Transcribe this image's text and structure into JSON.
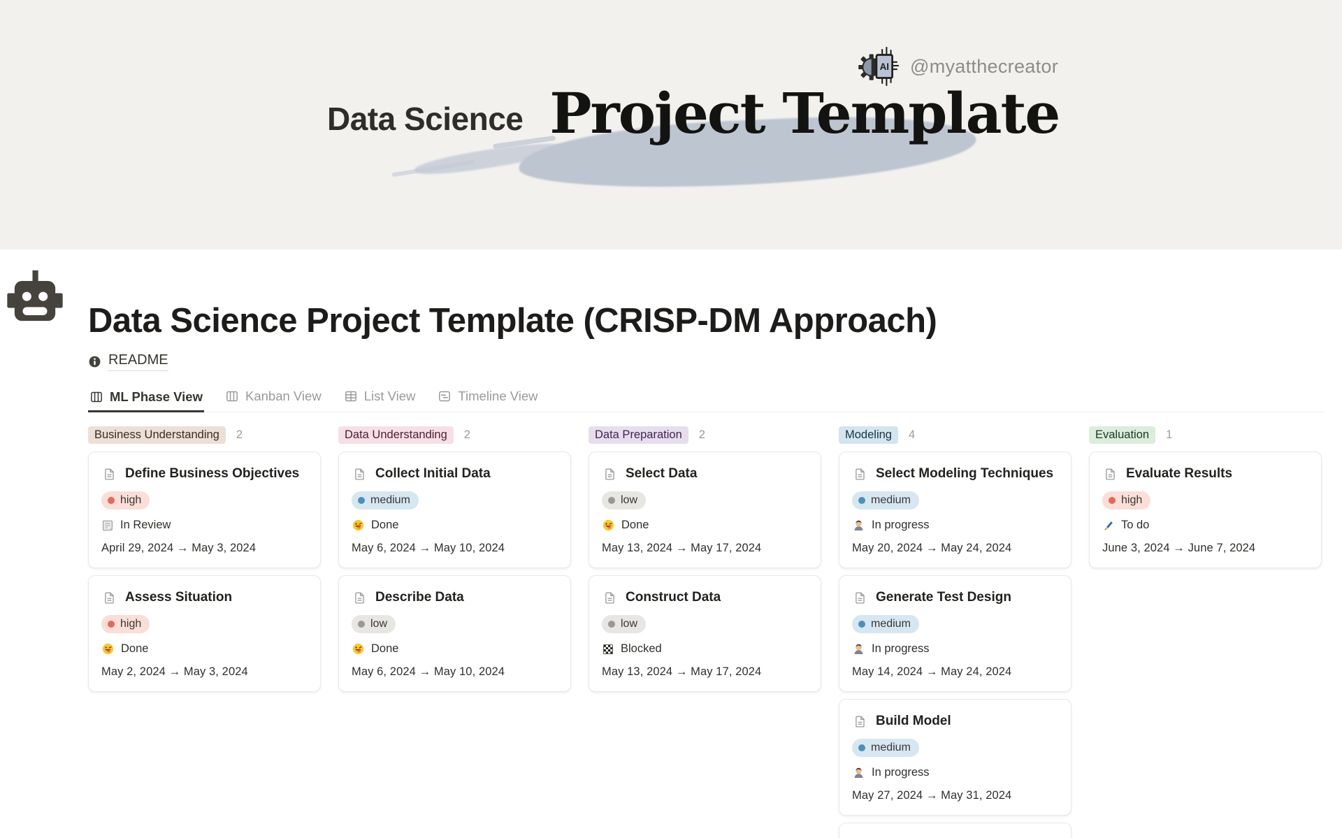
{
  "banner": {
    "handle": "@myatthecreator",
    "logo_label": "AI",
    "title_light": "Data Science",
    "title_display": "Project Template",
    "background": "#F2F1ED",
    "brush_stroke_color": "#BDC5D1"
  },
  "page": {
    "title": "Data Science Project Template (CRISP-DM Approach)",
    "readme_label": "README",
    "icon": "robot-icon"
  },
  "tabs": [
    {
      "label": "ML Phase View",
      "icon": "board-icon",
      "active": true
    },
    {
      "label": "Kanban View",
      "icon": "board-icon",
      "active": false
    },
    {
      "label": "List View",
      "icon": "table-icon",
      "active": false
    },
    {
      "label": "Timeline View",
      "icon": "timeline-icon",
      "active": false
    }
  ],
  "priorities": {
    "high": {
      "label": "high",
      "bg": "#FBDED7",
      "dot": "#E3695C"
    },
    "medium": {
      "label": "medium",
      "bg": "#D6E7F1",
      "dot": "#4E8FB8"
    },
    "low": {
      "label": "low",
      "bg": "#E7E6E3",
      "dot": "#9A9894"
    }
  },
  "board": {
    "columns": [
      {
        "name": "Business Understanding",
        "count": "2",
        "badge_bg": "#ECDFD6",
        "badge_text": "#3E2B20",
        "cards": [
          {
            "title": "Define Business Objectives",
            "priority": "high",
            "status_icon": "memo-icon",
            "status": "In Review",
            "dates": "April 29, 2024 → May 3, 2024"
          },
          {
            "title": "Assess Situation",
            "priority": "high",
            "status_icon": "tongue-face-icon",
            "status": "Done",
            "dates": "May 2, 2024 → May 3, 2024"
          }
        ]
      },
      {
        "name": "Data Understanding",
        "count": "2",
        "badge_bg": "#F6DFE6",
        "badge_text": "#4C2337",
        "cards": [
          {
            "title": "Collect Initial Data",
            "priority": "medium",
            "status_icon": "tongue-face-icon",
            "status": "Done",
            "dates": "May 6, 2024 → May 10, 2024"
          },
          {
            "title": "Describe Data",
            "priority": "low",
            "status_icon": "tongue-face-icon",
            "status": "Done",
            "dates": "May 6, 2024 → May 10, 2024"
          }
        ]
      },
      {
        "name": "Data Preparation",
        "count": "2",
        "badge_bg": "#E6DEED",
        "badge_text": "#412454",
        "cards": [
          {
            "title": "Select Data",
            "priority": "low",
            "status_icon": "tongue-face-icon",
            "status": "Done",
            "dates": "May 13, 2024 → May 17, 2024"
          },
          {
            "title": "Construct Data",
            "priority": "low",
            "status_icon": "checkerboard-icon",
            "status": "Blocked",
            "dates": "May 13, 2024 → May 17, 2024"
          }
        ]
      },
      {
        "name": "Modeling",
        "count": "4",
        "badge_bg": "#D3E5EF",
        "badge_text": "#183347",
        "cards": [
          {
            "title": "Select Modeling Techniques",
            "priority": "medium",
            "status_icon": "technologist-icon",
            "status": "In progress",
            "dates": "May 20, 2024 → May 24, 2024"
          },
          {
            "title": "Generate Test Design",
            "priority": "medium",
            "status_icon": "technologist-icon",
            "status": "In progress",
            "dates": "May 14, 2024 → May 24, 2024"
          },
          {
            "title": "Build Model",
            "priority": "medium",
            "status_icon": "technologist-icon",
            "status": "In progress",
            "dates": "May 27, 2024 → May 31, 2024"
          },
          {
            "title": "",
            "priority": "",
            "status_icon": "",
            "status": "",
            "dates": "",
            "partial": true
          }
        ]
      },
      {
        "name": "Evaluation",
        "count": "1",
        "badge_bg": "#DBEDDB",
        "badge_text": "#1C3829",
        "cards": [
          {
            "title": "Evaluate Results",
            "priority": "high",
            "status_icon": "pen-icon",
            "status": "To do",
            "dates": "June 3, 2024 → June 7, 2024"
          }
        ]
      }
    ]
  }
}
